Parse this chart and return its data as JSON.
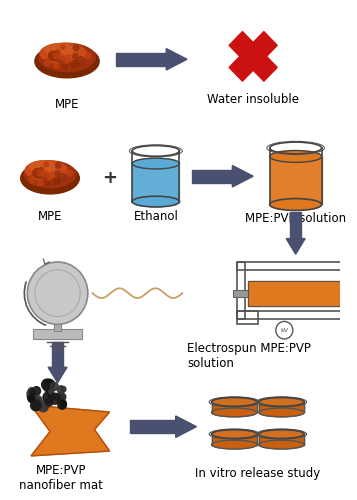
{
  "bg_color": "#ffffff",
  "arrow_color": "#4a5070",
  "mpe_dark": "#7B2800",
  "mpe_mid": "#B84010",
  "mpe_light": "#D06020",
  "ethanol_blue": "#5BAAD5",
  "ethanol_dark": "#4890BB",
  "solution_orange": "#E07820",
  "solution_dark": "#C05010",
  "fiber_orange": "#E07820",
  "petri_orange": "#C86010",
  "petri_rim": "#D07020",
  "red_cross": "#CC1111",
  "syringe_orange": "#E07820",
  "collector_gray": "#C8C8C8",
  "collector_dark": "#909090",
  "text_color": "#000000",
  "wire_color": "#C8A060",
  "labels": {
    "mpe1": "MPE",
    "water_insoluble": "Water insoluble",
    "mpe2": "MPE",
    "ethanol": "Ethanol",
    "pvp_solution": "MPE:PVP solution",
    "electrospun": "Electrospun MPE:PVP\nsolution",
    "nanofiber": "MPE:PVP\nnanofiber mat",
    "invitro": "In vitro release study"
  },
  "fontsize": 8.5
}
